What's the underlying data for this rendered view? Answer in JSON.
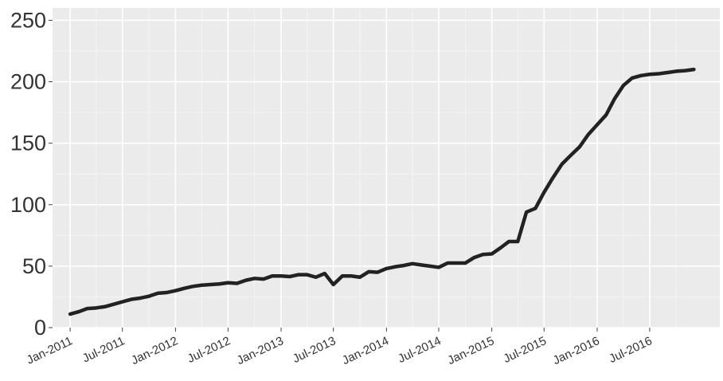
{
  "chart_data": {
    "type": "line",
    "title": "",
    "xlabel": "",
    "ylabel": "",
    "ylim": [
      0,
      260
    ],
    "y_ticks": [
      0,
      50,
      100,
      150,
      200,
      250
    ],
    "x_ticks": [
      "2011-01-01",
      "2011-07-01",
      "2012-01-01",
      "2012-07-01",
      "2013-01-01",
      "2013-07-01",
      "2014-01-01",
      "2014-07-01",
      "2015-01-01",
      "2015-07-01",
      "2016-01-01",
      "2016-07-01"
    ],
    "x_tick_labels": [
      "Jan-2011",
      "Jul-2011",
      "Jan-2012",
      "Jul-2012",
      "Jan-2013",
      "Jul-2013",
      "Jan-2014",
      "Jul-2014",
      "Jan-2015",
      "Jul-2015",
      "Jan-2016",
      "Jul-2016"
    ],
    "x_range": [
      "2010-11-01",
      "2017-03-01"
    ],
    "grid": true,
    "background": "#ebebeb",
    "line_color": "#222222",
    "series": [
      {
        "x": [
          "2011-01-01",
          "2011-02-01",
          "2011-03-01",
          "2011-04-01",
          "2011-05-01",
          "2011-06-01",
          "2011-07-01",
          "2011-08-01",
          "2011-09-01",
          "2011-10-01",
          "2011-11-01",
          "2011-12-01",
          "2012-01-01",
          "2012-02-01",
          "2012-03-01",
          "2012-04-01",
          "2012-05-01",
          "2012-06-01",
          "2012-07-01",
          "2012-08-01",
          "2012-09-01",
          "2012-10-01",
          "2012-11-01",
          "2012-12-01",
          "2013-01-01",
          "2013-02-01",
          "2013-03-01",
          "2013-04-01",
          "2013-05-01",
          "2013-06-01",
          "2013-07-01",
          "2013-08-01",
          "2013-09-01",
          "2013-10-01",
          "2013-11-01",
          "2013-12-01",
          "2014-01-01",
          "2014-02-01",
          "2014-03-01",
          "2014-04-01",
          "2014-05-01",
          "2014-06-01",
          "2014-07-01",
          "2014-08-01",
          "2014-09-01",
          "2014-10-01",
          "2014-11-01",
          "2014-12-01",
          "2015-01-01",
          "2015-02-01",
          "2015-03-01",
          "2015-04-01",
          "2015-05-01",
          "2015-06-01",
          "2015-07-01",
          "2015-08-01",
          "2015-09-01",
          "2015-10-01",
          "2015-11-01",
          "2015-12-01",
          "2016-01-01",
          "2016-02-01",
          "2016-03-01",
          "2016-04-01",
          "2016-05-01",
          "2016-06-01",
          "2016-07-01",
          "2016-08-01",
          "2016-09-01",
          "2016-10-01",
          "2016-11-01",
          "2016-12-01"
        ],
        "y": [
          11,
          13,
          15.5,
          16,
          17,
          19,
          21,
          23,
          24,
          25.5,
          28,
          28.5,
          30,
          32,
          33.5,
          34.5,
          35,
          35.5,
          36.5,
          36,
          38.5,
          40,
          39.5,
          42,
          42,
          41.5,
          43,
          43,
          41,
          44,
          35,
          42,
          42,
          41,
          45.5,
          45,
          48,
          49.5,
          50.5,
          52,
          51,
          50,
          49,
          52.5,
          52.5,
          52.5,
          57,
          59.5,
          60,
          65,
          70,
          70,
          94,
          97,
          110,
          122,
          133,
          140,
          147,
          157,
          165,
          173,
          186,
          197,
          203,
          205,
          206,
          206.5,
          207.5,
          208.5,
          209,
          210
        ]
      }
    ]
  }
}
